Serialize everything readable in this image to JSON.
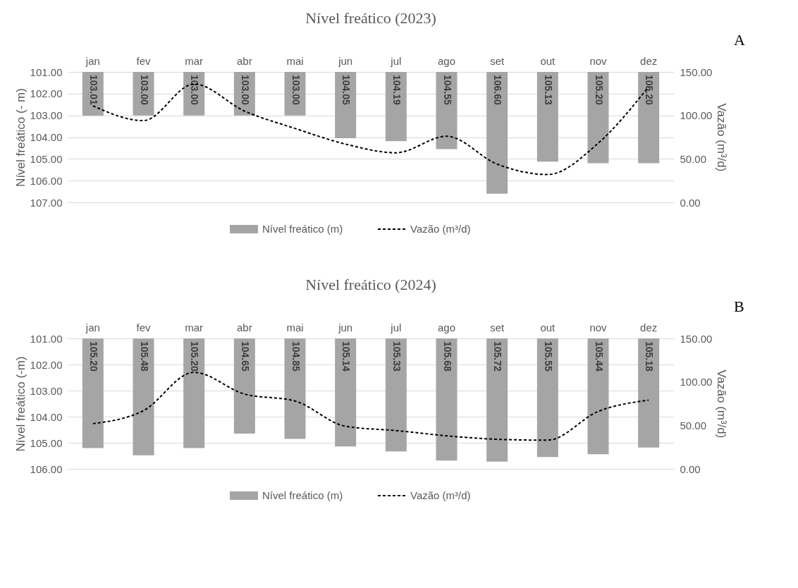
{
  "chart_data": [
    {
      "type": "bar",
      "title": "Nível freático (2023)",
      "ylabel": "Nível freático (- m)",
      "y2label": "Vazão (m³/d)",
      "annotations": [
        "A"
      ],
      "categories": [
        "jan",
        "fev",
        "mar",
        "abr",
        "mai",
        "jun",
        "jul",
        "ago",
        "set",
        "out",
        "nov",
        "dez"
      ],
      "series": [
        {
          "name": "Nível freático (m)",
          "color": "#a5a5a5",
          "values": [
            103.01,
            103.0,
            103.0,
            103.0,
            103.0,
            104.05,
            104.19,
            104.55,
            106.6,
            105.13,
            105.2,
            105.2
          ],
          "value_labels": [
            "103.01",
            "103.00",
            "103.00",
            "103.00",
            "103.00",
            "104.05",
            "104.19",
            "104.55",
            "106.60",
            "105.13",
            "105.20",
            "105.20"
          ]
        },
        {
          "name": "Vazão  (m³/d)",
          "type": "line",
          "axis": "y2",
          "color": "#000000",
          "line_style": "dashed",
          "values": [
            111,
            94,
            136,
            105,
            85,
            67,
            57,
            76,
            44,
            32,
            68,
            133
          ]
        }
      ],
      "ylim": [
        107,
        101
      ],
      "yticks": [
        {
          "value": 101,
          "label": "101.00"
        },
        {
          "value": 102,
          "label": "102.00"
        },
        {
          "value": 103,
          "label": "103.00"
        },
        {
          "value": 104,
          "label": "104.00"
        },
        {
          "value": 105,
          "label": "105.00"
        },
        {
          "value": 106,
          "label": "106.00"
        },
        {
          "value": 107,
          "label": "107.00"
        }
      ],
      "y2lim": [
        0,
        150
      ],
      "y2ticks": [
        {
          "value": 0,
          "label": "0.00"
        },
        {
          "value": 50,
          "label": "50.00"
        },
        {
          "value": 100,
          "label": "100.00"
        },
        {
          "value": 150,
          "label": "150.00"
        }
      ],
      "grid": "y",
      "legend": "bottom"
    },
    {
      "type": "bar",
      "title": "Nível freático (2024)",
      "ylabel": "Nível freático (-m)",
      "y2label": "Vazão (m³/d)",
      "annotations": [
        "B"
      ],
      "categories": [
        "jan",
        "fev",
        "mar",
        "abr",
        "mai",
        "jun",
        "jul",
        "ago",
        "set",
        "out",
        "nov",
        "dez"
      ],
      "series": [
        {
          "name": "Nível freático (m)",
          "color": "#a5a5a5",
          "values": [
            105.2,
            105.48,
            105.2,
            104.65,
            104.85,
            105.14,
            105.33,
            105.68,
            105.72,
            105.55,
            105.44,
            105.18
          ],
          "value_labels": [
            "105.20",
            "105.48",
            "105.20",
            "104.65",
            "104.85",
            "105.14",
            "105.33",
            "105.68",
            "105.72",
            "105.55",
            "105.44",
            "105.18"
          ]
        },
        {
          "name": "Vazão  (m³/d)",
          "type": "line",
          "axis": "y2",
          "color": "#000000",
          "line_style": "dashed",
          "values": [
            52,
            67,
            111,
            86,
            78,
            49,
            44,
            38,
            34,
            33,
            66,
            79
          ]
        }
      ],
      "ylim": [
        106,
        101
      ],
      "yticks": [
        {
          "value": 101,
          "label": "101.00"
        },
        {
          "value": 102,
          "label": "102.00"
        },
        {
          "value": 103,
          "label": "103.00"
        },
        {
          "value": 104,
          "label": "104.00"
        },
        {
          "value": 105,
          "label": "105.00"
        },
        {
          "value": 106,
          "label": "106.00"
        }
      ],
      "y2lim": [
        0,
        150
      ],
      "y2ticks": [
        {
          "value": 0,
          "label": "0.00"
        },
        {
          "value": 50,
          "label": "50.00"
        },
        {
          "value": 100,
          "label": "100.00"
        },
        {
          "value": 150,
          "label": "150.00"
        }
      ],
      "grid": "y",
      "legend": "bottom"
    }
  ]
}
